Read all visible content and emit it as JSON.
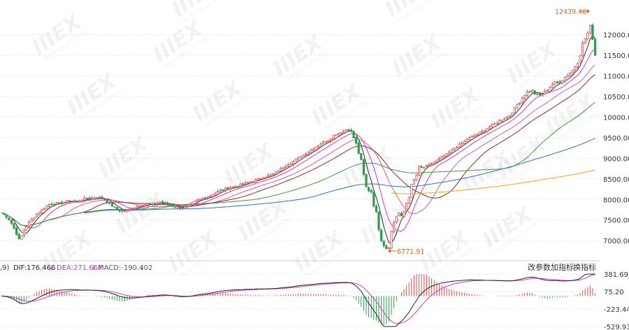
{
  "colors": {
    "up": "#e24b4b",
    "down": "#2f9a4a",
    "ma5": "#2b2b2b",
    "ma10": "#c03ad6",
    "ma20": "#e05a8a",
    "ma30": "#8a2a2a",
    "ma60": "#3e9a3e",
    "ma120": "#2f6fd0",
    "ma250": "#f2a21c",
    "dif": "#222222",
    "dea": "#c83ac8",
    "annot": "#e0642a"
  },
  "watermark": {
    "brand": "IIIEX",
    "sub": "Technology Group"
  },
  "chart_data": [
    {
      "type": "candlestick",
      "title": "",
      "y_ticks": [
        "12000.00",
        "11500.00",
        "11000.00",
        "10500.00",
        "10000.00",
        "9500.00",
        "9000.00",
        "8500.00",
        "8000.00",
        "7500.00",
        "7000.00"
      ],
      "ylim": [
        6800,
        12500
      ],
      "grid": true,
      "annotations": [
        {
          "label": "12439.48",
          "value": 12439.48,
          "type": "high"
        },
        {
          "label": "6771.91",
          "value": 6771.91,
          "type": "low"
        }
      ],
      "anchors": [
        [
          0,
          7700
        ],
        [
          8,
          7600
        ],
        [
          14,
          7500
        ],
        [
          20,
          7300
        ],
        [
          28,
          7000
        ],
        [
          34,
          7250
        ],
        [
          42,
          7450
        ],
        [
          50,
          7600
        ],
        [
          60,
          7750
        ],
        [
          70,
          7880
        ],
        [
          80,
          7900
        ],
        [
          90,
          7920
        ],
        [
          100,
          7980
        ],
        [
          110,
          7940
        ],
        [
          120,
          8020
        ],
        [
          130,
          8030
        ],
        [
          140,
          8060
        ],
        [
          150,
          7990
        ],
        [
          160,
          7850
        ],
        [
          170,
          7730
        ],
        [
          180,
          7720
        ],
        [
          190,
          7790
        ],
        [
          200,
          7850
        ],
        [
          210,
          7900
        ],
        [
          220,
          7870
        ],
        [
          230,
          7950
        ],
        [
          240,
          7880
        ],
        [
          250,
          7820
        ],
        [
          260,
          7800
        ],
        [
          270,
          7850
        ],
        [
          280,
          7960
        ],
        [
          290,
          8030
        ],
        [
          300,
          8080
        ],
        [
          310,
          8180
        ],
        [
          320,
          8250
        ],
        [
          330,
          8290
        ],
        [
          340,
          8330
        ],
        [
          350,
          8380
        ],
        [
          360,
          8440
        ],
        [
          370,
          8500
        ],
        [
          380,
          8560
        ],
        [
          390,
          8600
        ],
        [
          400,
          8720
        ],
        [
          410,
          8840
        ],
        [
          420,
          8920
        ],
        [
          430,
          9050
        ],
        [
          440,
          9140
        ],
        [
          450,
          9260
        ],
        [
          460,
          9370
        ],
        [
          470,
          9450
        ],
        [
          480,
          9580
        ],
        [
          490,
          9650
        ],
        [
          498,
          9720
        ],
        [
          505,
          9550
        ],
        [
          510,
          9300
        ],
        [
          515,
          9050
        ],
        [
          520,
          8600
        ],
        [
          525,
          8200
        ],
        [
          530,
          8300
        ],
        [
          535,
          7900
        ],
        [
          540,
          7500
        ],
        [
          545,
          7100
        ],
        [
          550,
          6900
        ],
        [
          555,
          6800
        ],
        [
          560,
          7200
        ],
        [
          565,
          7550
        ],
        [
          570,
          7700
        ],
        [
          575,
          7500
        ],
        [
          580,
          7850
        ],
        [
          585,
          8100
        ],
        [
          590,
          8350
        ],
        [
          595,
          8550
        ],
        [
          600,
          8750
        ],
        [
          610,
          8800
        ],
        [
          620,
          8900
        ],
        [
          630,
          9000
        ],
        [
          640,
          9100
        ],
        [
          650,
          9250
        ],
        [
          660,
          9350
        ],
        [
          670,
          9480
        ],
        [
          680,
          9560
        ],
        [
          690,
          9650
        ],
        [
          700,
          9760
        ],
        [
          710,
          9850
        ],
        [
          720,
          9960
        ],
        [
          730,
          10050
        ],
        [
          740,
          10300
        ],
        [
          750,
          10550
        ],
        [
          760,
          10650
        ],
        [
          770,
          10500
        ],
        [
          780,
          10600
        ],
        [
          790,
          10800
        ],
        [
          800,
          10850
        ],
        [
          810,
          11000
        ],
        [
          820,
          11150
        ],
        [
          828,
          11400
        ],
        [
          834,
          11800
        ],
        [
          840,
          12000
        ],
        [
          846,
          12250
        ],
        [
          850,
          11600
        ],
        [
          855,
          11300
        ]
      ]
    },
    {
      "type": "macd",
      "legend": {
        "prefix": ",9)",
        "dif": "DIF:176.466",
        "dea": "DEA:271.667",
        "macd": "MACD:-190.402"
      },
      "y_ticks": [
        "381.69",
        "75.20",
        "-223.44",
        "-529.93"
      ],
      "ylim": [
        -529.93,
        381.69
      ],
      "buttons": [
        "改参数",
        "加指标",
        "换指标"
      ]
    }
  ]
}
